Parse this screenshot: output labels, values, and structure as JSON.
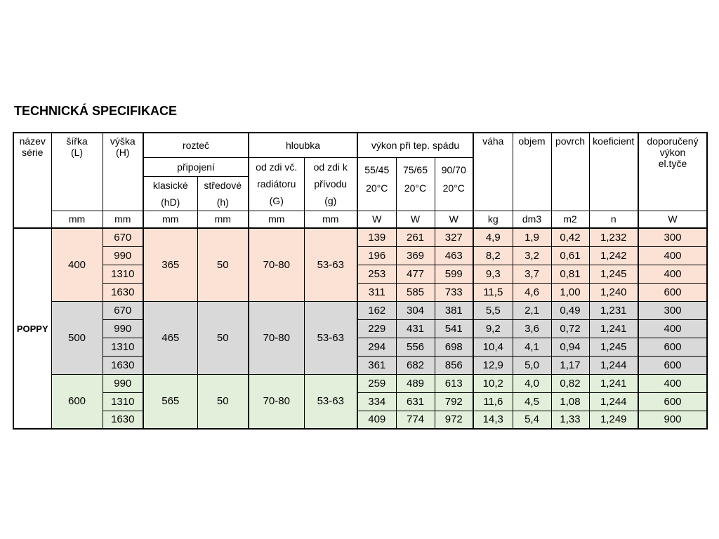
{
  "title": "TECHNICKÁ SPECIFIKACE",
  "series_name": "POPPY",
  "header": {
    "nazev": "název\nsérie",
    "sirka": "šířka\n(L)",
    "vyska": "výška\n(H)",
    "roztec": "rozteč",
    "pripojeni": "připojení",
    "klasicke": "klasické\n(hD)",
    "stredove": "středové\n(h)",
    "hloubka": "hloubka",
    "od_zdi_vc": "od zdi vč.\nradiátoru\n(G)",
    "od_zdi_k": "od zdi k\npřívodu\n(g)",
    "vykon": "výkon při tep. spádu",
    "t1": "55/45\n20°C",
    "t2": "75/65\n20°C",
    "t3": "90/70\n20°C",
    "vaha": "váha",
    "objem": "objem",
    "povrch": "povrch",
    "koeficient": "koeficient",
    "doporuceny": "doporučený\nvýkon\nel.tyče",
    "units": {
      "sirka": "mm",
      "vyska": "mm",
      "klasicke": "mm",
      "stredove": "mm",
      "g": "mm",
      "g2": "mm",
      "w1": "W",
      "w2": "W",
      "w3": "W",
      "vaha": "kg",
      "objem": "dm3",
      "povrch": "m2",
      "koef": "n",
      "dop": "W"
    }
  },
  "groups": [
    {
      "sirka": "400",
      "bg": "#fbe2d5",
      "roztec_klasicke": "365",
      "roztec_stredove": "50",
      "hloubka_g": "70-80",
      "hloubka_g2": "53-63",
      "rows": [
        [
          "670",
          "139",
          "261",
          "327",
          "4,9",
          "1,9",
          "0,42",
          "1,232",
          "300"
        ],
        [
          "990",
          "196",
          "369",
          "463",
          "8,2",
          "3,2",
          "0,61",
          "1,242",
          "400"
        ],
        [
          "1310",
          "253",
          "477",
          "599",
          "9,3",
          "3,7",
          "0,81",
          "1,245",
          "400"
        ],
        [
          "1630",
          "311",
          "585",
          "733",
          "11,5",
          "4,6",
          "1,00",
          "1,240",
          "600"
        ]
      ]
    },
    {
      "sirka": "500",
      "bg": "#d9d9d9",
      "roztec_klasicke": "465",
      "roztec_stredove": "50",
      "hloubka_g": "70-80",
      "hloubka_g2": "53-63",
      "rows": [
        [
          "670",
          "162",
          "304",
          "381",
          "5,5",
          "2,1",
          "0,49",
          "1,231",
          "300"
        ],
        [
          "990",
          "229",
          "431",
          "541",
          "9,2",
          "3,6",
          "0,72",
          "1,241",
          "400"
        ],
        [
          "1310",
          "294",
          "556",
          "698",
          "10,4",
          "4,1",
          "0,94",
          "1,245",
          "600"
        ],
        [
          "1630",
          "361",
          "682",
          "856",
          "12,9",
          "5,0",
          "1,17",
          "1,244",
          "600"
        ]
      ]
    },
    {
      "sirka": "600",
      "bg": "#e2efda",
      "roztec_klasicke": "565",
      "roztec_stredove": "50",
      "hloubka_g": "70-80",
      "hloubka_g2": "53-63",
      "rows": [
        [
          "990",
          "259",
          "489",
          "613",
          "10,2",
          "4,0",
          "0,82",
          "1,241",
          "400"
        ],
        [
          "1310",
          "334",
          "631",
          "792",
          "11,6",
          "4,5",
          "1,08",
          "1,244",
          "600"
        ],
        [
          "1630",
          "409",
          "774",
          "972",
          "14,3",
          "5,4",
          "1,33",
          "1,249",
          "900"
        ]
      ]
    }
  ]
}
